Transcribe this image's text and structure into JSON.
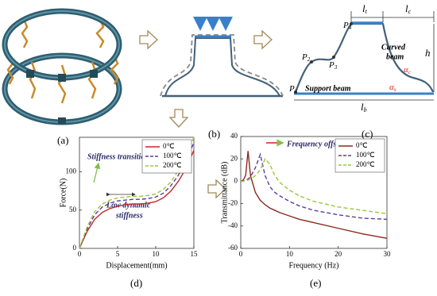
{
  "panel_labels": [
    "(a)",
    "(b)",
    "(c)",
    "(d)",
    "(e)"
  ],
  "diagram_c": {
    "points": [
      {
        "base": "P",
        "sub": "1"
      },
      {
        "base": "P",
        "sub": "2"
      },
      {
        "base": "P",
        "sub": "3"
      },
      {
        "base": "P",
        "sub": "4"
      }
    ],
    "dimensions": [
      {
        "base": "l",
        "sub": "t"
      },
      {
        "base": "l",
        "sub": "c"
      },
      {
        "base": "h",
        "sub": ""
      },
      {
        "base": "l",
        "sub": "b"
      }
    ],
    "angles": [
      {
        "base": "α",
        "sub": "c"
      },
      {
        "base": "α",
        "sub": "s"
      }
    ],
    "curved_beam": [
      "Curved",
      "beam"
    ],
    "support_beam": "Support beam"
  },
  "chart_data": [
    {
      "type": "line",
      "xlabel": "Displacement(mm)",
      "ylabel": "Force(N)",
      "annotations": [
        "Stiffness transition",
        "Low dynamic",
        "stiffness"
      ],
      "x": [
        0,
        1,
        2,
        3,
        4,
        5,
        6,
        7,
        8,
        9,
        10,
        11,
        12,
        13,
        14,
        15
      ],
      "xlim": [
        0,
        15
      ],
      "xticks": [
        0,
        5,
        10,
        15
      ],
      "ylim": [
        0,
        145
      ],
      "yticks": [
        0,
        50,
        100
      ],
      "legend": "upper right",
      "series": [
        {
          "name": "0℃",
          "color": "#c0282d",
          "line_style": "solid",
          "values": [
            0,
            22,
            38,
            47,
            52,
            55,
            57,
            58,
            58,
            59,
            61,
            66,
            75,
            88,
            105,
            128
          ]
        },
        {
          "name": "100℃",
          "color": "#5b3d9e",
          "line_style": "dashed",
          "values": [
            0,
            25,
            44,
            54,
            59,
            62,
            63,
            64,
            64,
            65,
            67,
            72,
            82,
            96,
            115,
            138
          ]
        },
        {
          "name": "200℃",
          "color": "#9ac73c",
          "line_style": "dashed",
          "values": [
            0,
            28,
            48,
            58,
            63,
            66,
            67,
            68,
            68,
            69,
            71,
            77,
            87,
            102,
            122,
            145
          ]
        }
      ]
    },
    {
      "type": "line",
      "xlabel": "Frequency (Hz)",
      "ylabel": "Transmittance (dB)",
      "annotations": [
        "Frequency offset"
      ],
      "x": [
        0,
        0.5,
        1,
        1.5,
        2,
        3,
        4,
        5,
        6,
        7,
        8,
        10,
        12,
        15,
        20,
        25,
        30
      ],
      "xlim": [
        0,
        30
      ],
      "xticks": [
        0,
        10,
        20,
        30
      ],
      "ylim": [
        -60,
        40
      ],
      "yticks": [
        -60,
        -40,
        -20,
        0,
        20,
        40
      ],
      "legend": "upper right",
      "series": [
        {
          "name": "0℃",
          "color": "#8b2a1e",
          "line_style": "solid",
          "values": [
            0,
            1,
            5,
            27,
            5,
            -10,
            -17,
            -21,
            -24,
            -26,
            -28,
            -31,
            -34,
            -37,
            -42,
            -47,
            -51
          ]
        },
        {
          "name": "100℃",
          "color": "#5b3d9e",
          "line_style": "dashed",
          "values": [
            0,
            0,
            1,
            2,
            4,
            12,
            24,
            5,
            -5,
            -10,
            -13,
            -18,
            -22,
            -26,
            -30,
            -33,
            -34
          ]
        },
        {
          "name": "200℃",
          "color": "#9ac73c",
          "line_style": "dashed",
          "values": [
            0,
            0,
            0.5,
            1,
            2,
            5,
            10,
            20,
            15,
            5,
            -1,
            -8,
            -13,
            -18,
            -23,
            -26,
            -29
          ]
        }
      ]
    }
  ]
}
